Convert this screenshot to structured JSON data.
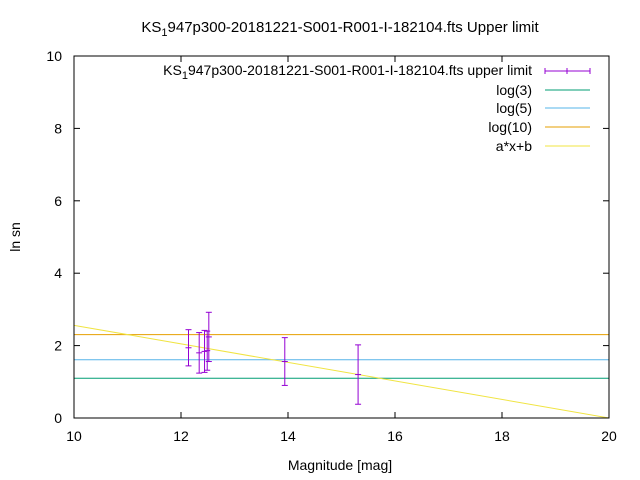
{
  "chart_data": {
    "type": "scatter",
    "title": {
      "prefix": "KS",
      "sub": "1",
      "rest": "947p300-20181221-S001-R001-I-182104.fts Upper limit"
    },
    "xlabel": "Magnitude [mag]",
    "ylabel": "ln sn",
    "xlim": [
      10,
      20
    ],
    "ylim": [
      0,
      10
    ],
    "xticks": [
      "10",
      "12",
      "14",
      "16",
      "18",
      "20"
    ],
    "yticks": [
      "0",
      "2",
      "4",
      "6",
      "8",
      "10"
    ],
    "grid": false,
    "legend_position": "top-right",
    "series": [
      {
        "name": {
          "prefix": "KS",
          "sub": "1",
          "rest": "947p300-20181221-S001-R001-I-182104.fts upper limit"
        },
        "kind": "errorbar",
        "color": "#9400d3",
        "points": [
          {
            "x": 12.14,
            "y": 1.94,
            "ylow": 1.44,
            "yhigh": 2.44
          },
          {
            "x": 12.34,
            "y": 1.8,
            "ylow": 1.24,
            "yhigh": 2.36
          },
          {
            "x": 12.44,
            "y": 1.84,
            "ylow": 1.26,
            "yhigh": 2.42
          },
          {
            "x": 12.49,
            "y": 1.86,
            "ylow": 1.32,
            "yhigh": 2.4
          },
          {
            "x": 12.52,
            "y": 2.24,
            "ylow": 1.56,
            "yhigh": 2.92
          },
          {
            "x": 13.94,
            "y": 1.56,
            "ylow": 0.9,
            "yhigh": 2.22
          },
          {
            "x": 15.31,
            "y": 1.2,
            "ylow": 0.38,
            "yhigh": 2.02
          }
        ]
      },
      {
        "name": "log(3)",
        "kind": "hline",
        "y": 1.0986,
        "color": "#009e73"
      },
      {
        "name": "log(5)",
        "kind": "hline",
        "y": 1.6094,
        "color": "#56b4e9"
      },
      {
        "name": "log(10)",
        "kind": "hline",
        "y": 2.3026,
        "color": "#e69f00"
      },
      {
        "name": "a*x+b",
        "kind": "line",
        "x": [
          10,
          20
        ],
        "y": [
          2.56,
          0.0
        ],
        "color": "#f0e442"
      }
    ]
  }
}
